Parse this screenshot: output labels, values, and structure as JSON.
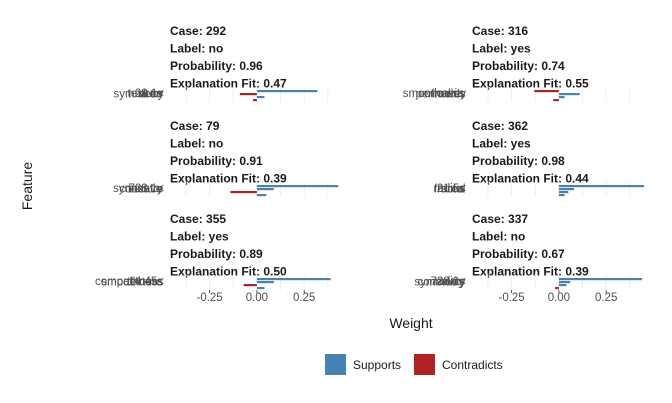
{
  "chart_data": {
    "type": "bar",
    "xlabel": "Weight",
    "ylabel": "Feature",
    "xlim": [
      -0.47,
      0.45
    ],
    "x_ticks": [
      -0.25,
      0.0,
      0.25
    ],
    "x_tick_labels": [
      "-0.25",
      "0.00",
      "0.25"
    ],
    "grid": true,
    "legend": {
      "placement": "bottom",
      "entries": [
        {
          "label": "Supports",
          "color": "#4682B4"
        },
        {
          "label": "Contradicts",
          "color": "#B22222"
        }
      ]
    },
    "panels": [
      {
        "lines": [
          "Case: 292",
          "Label: no",
          "Probability: 0.96",
          "Explanation Fit: 0.47"
        ],
        "features": [
          {
            "label": "28.1<",
            "weight": 0.32
          },
          {
            "label": "symmetry",
            "weight": -0.09
          },
          {
            "label": "texture",
            "weight": 0.04
          },
          {
            "label": "area",
            "weight": -0.02
          }
        ]
      },
      {
        "lines": [
          "Case: 316",
          "Label: yes",
          "Probability: 0.74",
          "Explanation Fit: 0.55"
        ],
        "features": [
          {
            "label": "concavity",
            "weight": -0.13
          },
          {
            "label": "radius",
            "weight": 0.11
          },
          {
            "label": "smoothness",
            "weight": 0.03
          },
          {
            "label": "perimeter",
            "weight": -0.03
          }
        ]
      },
      {
        "lines": [
          "Case: 79",
          "Label: no",
          "Probability: 0.91",
          "Explanation Fit: 0.39"
        ],
        "features": [
          {
            "label": "728.1<",
            "weight": 0.43
          },
          {
            "label": "texture",
            "weight": 0.09
          },
          {
            "label": "symmetry",
            "weight": -0.14
          },
          {
            "label": "concave",
            "weight": 0.05
          }
        ]
      },
      {
        "lines": [
          "Case: 362",
          "Label: yes",
          "Probability: 0.98",
          "Explanation Fit: 0.44"
        ],
        "features": [
          {
            "label": "21.5<",
            "weight": 0.45
          },
          {
            "label": "fractal",
            "weight": 0.08
          },
          {
            "label": "radius",
            "weight": 0.05
          },
          {
            "label": "area",
            "weight": 0.03
          }
        ]
      },
      {
        "lines": [
          "Case: 355",
          "Label: yes",
          "Probability: 0.89",
          "Explanation Fit: 0.50"
        ],
        "features": [
          {
            "label": "14.45<",
            "weight": 0.39
          },
          {
            "label": "smoothness",
            "weight": 0.09
          },
          {
            "label": "compactness",
            "weight": -0.07
          },
          {
            "label": "texture",
            "weight": 0.04
          }
        ]
      },
      {
        "lines": [
          "Case: 337",
          "Label: no",
          "Probability: 0.67",
          "Explanation Fit: 0.39"
        ],
        "features": [
          {
            "label": "728.1<",
            "weight": 0.44
          },
          {
            "label": "concavity",
            "weight": 0.06
          },
          {
            "label": "radius",
            "weight": 0.04
          },
          {
            "label": "symmetry",
            "weight": -0.02
          }
        ]
      }
    ]
  }
}
